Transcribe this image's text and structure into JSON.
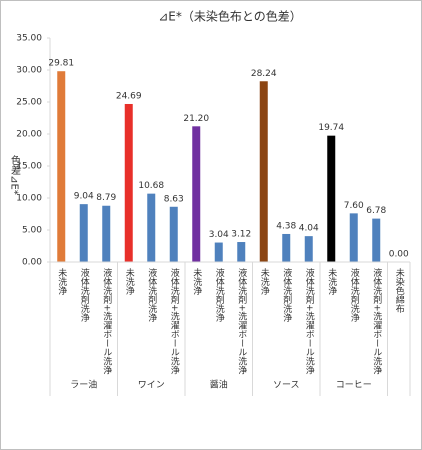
{
  "chart_data": {
    "type": "bar",
    "title": "⊿E*（未染色布との色差）",
    "y_label": "色差⊿E*",
    "groups": [
      {
        "name": "ラー油",
        "categories": [
          "未洗浄",
          "液体洗剤洗浄",
          "液体洗剤+洗濯ボール洗浄"
        ]
      },
      {
        "name": "ワイン",
        "categories": [
          "未洗浄",
          "液体洗剤洗浄",
          "液体洗剤+洗濯ボール洗浄"
        ]
      },
      {
        "name": "醤油",
        "categories": [
          "未洗浄",
          "液体洗剤洗浄",
          "液体洗剤+洗濯ボール洗浄"
        ]
      },
      {
        "name": "ソース",
        "categories": [
          "未洗浄",
          "液体洗剤洗浄",
          "液体洗剤+洗濯ボール洗浄"
        ]
      },
      {
        "name": "コーヒー",
        "categories": [
          "未洗浄",
          "液体洗剤洗浄",
          "液体洗剤+洗濯ボール洗浄"
        ]
      },
      {
        "name": null,
        "categories": [
          "未染色綿布"
        ]
      }
    ],
    "values": [
      29.81,
      9.04,
      8.79,
      24.69,
      10.68,
      8.63,
      21.2,
      3.04,
      3.12,
      28.24,
      4.38,
      4.04,
      19.74,
      7.6,
      6.78,
      0
    ],
    "value_labels": [
      "29.81",
      "9.04",
      "8.79",
      "24.69",
      "10.68",
      "8.63",
      "21.20",
      "3.04",
      "3.12",
      "28.24",
      "4.38",
      "4.04",
      "19.74",
      "7.60",
      "6.78",
      "0.00"
    ],
    "colors": [
      "#e07b39",
      "#4f81bd",
      "#4f81bd",
      "#e8302a",
      "#4f81bd",
      "#4f81bd",
      "#7030a0",
      "#4f81bd",
      "#4f81bd",
      "#8b4513",
      "#4f81bd",
      "#4f81bd",
      "#000000",
      "#4f81bd",
      "#4f81bd",
      "#4f81bd"
    ],
    "ylim": [
      0,
      35
    ],
    "yticks": [
      {
        "value": 0,
        "label": "0.00"
      },
      {
        "value": 5,
        "label": "5.00"
      },
      {
        "value": 10,
        "label": "10.00"
      },
      {
        "value": 15,
        "label": "15.00"
      },
      {
        "value": 20,
        "label": "20.00"
      },
      {
        "value": 25,
        "label": "25.00"
      },
      {
        "value": 30,
        "label": "30.00"
      },
      {
        "value": 35,
        "label": "35.00"
      }
    ],
    "grid": false
  }
}
